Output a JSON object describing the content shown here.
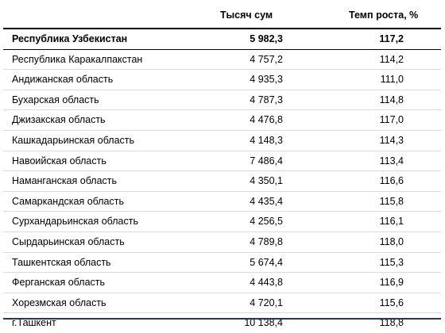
{
  "header": {
    "col_value": "Тысяч сум",
    "col_rate": "Темп роста, %"
  },
  "rows": [
    {
      "name": "Республика Узбекистан",
      "value": "5 982,3",
      "rate": "117,2"
    },
    {
      "name": "Республика Каракалпакстан",
      "value": "4 757,2",
      "rate": "114,2"
    },
    {
      "name": "Андижанская область",
      "value": "4 935,3",
      "rate": "111,0"
    },
    {
      "name": "Бухарская область",
      "value": "4 787,3",
      "rate": "114,8"
    },
    {
      "name": "Джизакская область",
      "value": "4 476,8",
      "rate": "117,0"
    },
    {
      "name": "Кашкадарьинская область",
      "value": "4 148,3",
      "rate": "114,3"
    },
    {
      "name": "Навоийская область",
      "value": "7 486,4",
      "rate": "113,4"
    },
    {
      "name": "Наманганская область",
      "value": "4 350,1",
      "rate": "116,6"
    },
    {
      "name": "Самаркандская область",
      "value": "4 435,4",
      "rate": "115,8"
    },
    {
      "name": "Сурхандарьинская область",
      "value": "4 256,5",
      "rate": "116,1"
    },
    {
      "name": "Сырдарьинская область",
      "value": "4 789,8",
      "rate": "118,0"
    },
    {
      "name": "Ташкентская область",
      "value": "5 674,4",
      "rate": "115,3"
    },
    {
      "name": "Ферганская область",
      "value": "4 443,8",
      "rate": "116,9"
    },
    {
      "name": "Хорезмская область",
      "value": "4 720,1",
      "rate": "115,6"
    },
    {
      "name": "г.Ташкент",
      "value": "10 138,4",
      "rate": "118,8"
    }
  ]
}
